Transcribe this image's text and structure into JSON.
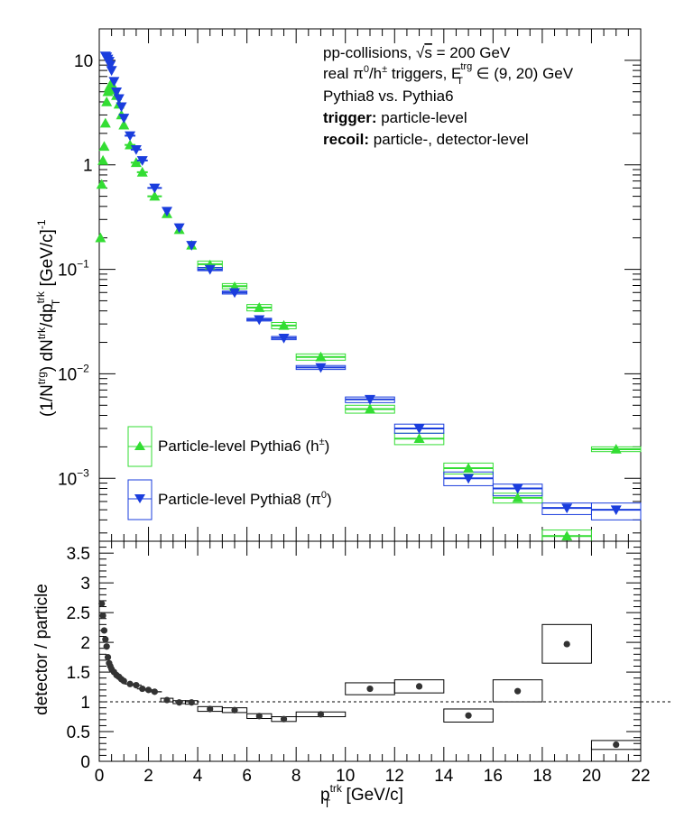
{
  "chart_data": [
    {
      "type": "scatter",
      "panel": "top",
      "ylabel": {
        "main": "(1/N",
        "sup_trg": "trg",
        "mid": ") dN",
        "sup_trk": "trk",
        "div": "/dp",
        "sub_T": "T",
        "sup_trk2": "trk",
        "unit": " [GeV/c]",
        "sup_unit": "-1"
      },
      "ylim": [
        0.00025,
        20
      ],
      "yscale": "log",
      "y_tick_labels": [
        {
          "value": 10,
          "base": "10",
          "exp": ""
        },
        {
          "value": 1,
          "base": "1",
          "exp": ""
        },
        {
          "value": 0.1,
          "base": "10",
          "exp": "−1"
        },
        {
          "value": 0.01,
          "base": "10",
          "exp": "−2"
        },
        {
          "value": 0.001,
          "base": "10",
          "exp": "−3"
        }
      ],
      "annotations": {
        "line1_a": "pp-collisions, ",
        "line1_sqrt": "√",
        "line1_s": "s",
        "line1_b": " = 200 GeV",
        "line2_a": "real π",
        "line2_sup0": "0",
        "line2_b": "/h",
        "line2_sup_pm": "±",
        "line2_c": " triggers, E",
        "line2_sup_trg": "trg",
        "line2_sub_T": "T",
        "line2_d": " ∈ (9, 20) GeV",
        "line3": "Pythia8 vs. Pythia6",
        "line4_bold": "trigger:",
        "line4_rest": " particle-level",
        "line5_bold": "recoil:",
        "line5_rest": " particle-, detector-level"
      },
      "series": [
        {
          "name": "Particle-level Pythia6 (h±)",
          "legend_text": "Particle-level Pythia6 (h",
          "legend_sup": "±",
          "legend_close": ")",
          "marker": "triangle-up",
          "color": "#33dd33",
          "points": [
            {
              "x": 0.05,
              "y": 0.2
            },
            {
              "x": 0.1,
              "y": 0.65
            },
            {
              "x": 0.15,
              "y": 1.1
            },
            {
              "x": 0.2,
              "y": 1.5
            },
            {
              "x": 0.25,
              "y": 2.5
            },
            {
              "x": 0.3,
              "y": 4.0
            },
            {
              "x": 0.35,
              "y": 5.0
            },
            {
              "x": 0.4,
              "y": 5.5
            },
            {
              "x": 0.45,
              "y": 5.8
            },
            {
              "x": 0.5,
              "y": 6.0
            },
            {
              "x": 0.6,
              "y": 5.2
            },
            {
              "x": 0.7,
              "y": 4.6
            },
            {
              "x": 0.8,
              "y": 3.8
            },
            {
              "x": 0.9,
              "y": 3.0
            },
            {
              "x": 1.0,
              "y": 2.4
            },
            {
              "x": 1.25,
              "y": 1.55
            },
            {
              "x": 1.5,
              "y": 1.05
            },
            {
              "x": 1.75,
              "y": 0.85
            },
            {
              "x": 2.25,
              "y": 0.5
            },
            {
              "x": 2.75,
              "y": 0.34
            },
            {
              "x": 3.25,
              "y": 0.24
            },
            {
              "x": 3.75,
              "y": 0.17
            },
            {
              "x": 4.5,
              "y": 0.11
            },
            {
              "x": 5.5,
              "y": 0.068
            },
            {
              "x": 6.5,
              "y": 0.043
            },
            {
              "x": 7.5,
              "y": 0.029
            },
            {
              "x": 9,
              "y": 0.0145
            },
            {
              "x": 11,
              "y": 0.0046
            },
            {
              "x": 13,
              "y": 0.0024
            },
            {
              "x": 15,
              "y": 0.00125
            },
            {
              "x": 17,
              "y": 0.00065
            },
            {
              "x": 19,
              "y": 0.00028
            },
            {
              "x": 21,
              "y": 0.0019
            }
          ]
        },
        {
          "name": "Particle-level Pythia8 (π0)",
          "legend_text": "Particle-level Pythia8 (π",
          "legend_sup": "0",
          "legend_close": ")",
          "marker": "triangle-down",
          "color": "#1a3ddd",
          "points": [
            {
              "x": 0.25,
              "y": 11.0
            },
            {
              "x": 0.3,
              "y": 10.8
            },
            {
              "x": 0.35,
              "y": 10.3
            },
            {
              "x": 0.4,
              "y": 9.8
            },
            {
              "x": 0.45,
              "y": 9.0
            },
            {
              "x": 0.5,
              "y": 8.0
            },
            {
              "x": 0.6,
              "y": 6.3
            },
            {
              "x": 0.7,
              "y": 5.0
            },
            {
              "x": 0.8,
              "y": 4.3
            },
            {
              "x": 0.9,
              "y": 3.6
            },
            {
              "x": 1.0,
              "y": 2.8
            },
            {
              "x": 1.25,
              "y": 1.9
            },
            {
              "x": 1.5,
              "y": 1.4
            },
            {
              "x": 1.75,
              "y": 1.1
            },
            {
              "x": 2.25,
              "y": 0.6
            },
            {
              "x": 2.75,
              "y": 0.36
            },
            {
              "x": 3.25,
              "y": 0.25
            },
            {
              "x": 3.75,
              "y": 0.17
            },
            {
              "x": 4.5,
              "y": 0.1
            },
            {
              "x": 5.5,
              "y": 0.06
            },
            {
              "x": 6.5,
              "y": 0.033
            },
            {
              "x": 7.5,
              "y": 0.022
            },
            {
              "x": 9,
              "y": 0.0115
            },
            {
              "x": 11,
              "y": 0.0057
            },
            {
              "x": 13,
              "y": 0.003
            },
            {
              "x": 15,
              "y": 0.001
            },
            {
              "x": 17,
              "y": 0.0008
            },
            {
              "x": 19,
              "y": 0.00052
            },
            {
              "x": 21,
              "y": 0.0005
            }
          ]
        }
      ],
      "boxes_green": [
        {
          "x0": 4,
          "x1": 5,
          "y": 0.112,
          "lo": 0.104,
          "hi": 0.12
        },
        {
          "x0": 5,
          "x1": 6,
          "y": 0.069,
          "lo": 0.065,
          "hi": 0.073
        },
        {
          "x0": 6,
          "x1": 7,
          "y": 0.043,
          "lo": 0.04,
          "hi": 0.046
        },
        {
          "x0": 7,
          "x1": 8,
          "y": 0.029,
          "lo": 0.027,
          "hi": 0.031
        },
        {
          "x0": 8,
          "x1": 10,
          "y": 0.0145,
          "lo": 0.0135,
          "hi": 0.0155
        },
        {
          "x0": 10,
          "x1": 12,
          "y": 0.0046,
          "lo": 0.0042,
          "hi": 0.005
        },
        {
          "x0": 12,
          "x1": 14,
          "y": 0.0024,
          "lo": 0.0021,
          "hi": 0.0027
        },
        {
          "x0": 14,
          "x1": 16,
          "y": 0.00125,
          "lo": 0.0011,
          "hi": 0.0014
        },
        {
          "x0": 16,
          "x1": 18,
          "y": 0.00065,
          "lo": 0.00058,
          "hi": 0.00072
        },
        {
          "x0": 18,
          "x1": 20,
          "y": 0.00028,
          "lo": 0.00025,
          "hi": 0.00032
        },
        {
          "x0": 20,
          "x1": 22,
          "y": 0.0019,
          "lo": 0.0018,
          "hi": 0.002
        }
      ],
      "boxes_blue": [
        {
          "x0": 4,
          "x1": 5,
          "y": 0.1,
          "lo": 0.097,
          "hi": 0.104
        },
        {
          "x0": 5,
          "x1": 6,
          "y": 0.06,
          "lo": 0.058,
          "hi": 0.062
        },
        {
          "x0": 6,
          "x1": 7,
          "y": 0.033,
          "lo": 0.032,
          "hi": 0.034
        },
        {
          "x0": 7,
          "x1": 8,
          "y": 0.022,
          "lo": 0.0212,
          "hi": 0.0228
        },
        {
          "x0": 8,
          "x1": 10,
          "y": 0.0115,
          "lo": 0.011,
          "hi": 0.012
        },
        {
          "x0": 10,
          "x1": 12,
          "y": 0.0057,
          "lo": 0.0053,
          "hi": 0.006
        },
        {
          "x0": 12,
          "x1": 14,
          "y": 0.003,
          "lo": 0.0027,
          "hi": 0.0033
        },
        {
          "x0": 14,
          "x1": 16,
          "y": 0.001,
          "lo": 0.00085,
          "hi": 0.00115
        },
        {
          "x0": 16,
          "x1": 18,
          "y": 0.0008,
          "lo": 0.00068,
          "hi": 0.00088
        },
        {
          "x0": 18,
          "x1": 20,
          "y": 0.00052,
          "lo": 0.00045,
          "hi": 0.00058
        },
        {
          "x0": 20,
          "x1": 22,
          "y": 0.0005,
          "lo": 0.0004,
          "hi": 0.00058
        }
      ]
    },
    {
      "type": "scatter",
      "panel": "bottom",
      "ylabel": "detector / particle",
      "xlabel": {
        "main": "p",
        "sub_T": "T",
        "sup_trk": "trk",
        "unit": " [GeV/c]"
      },
      "xlim": [
        0,
        22
      ],
      "ylim": [
        0,
        3.7
      ],
      "x_tick_labels": [
        "0",
        "2",
        "4",
        "6",
        "8",
        "10",
        "12",
        "14",
        "16",
        "18",
        "20",
        "22"
      ],
      "y_tick_labels": [
        "0",
        "0.5",
        "1",
        "1.5",
        "2",
        "2.5",
        "3",
        "3.5"
      ],
      "reference_line_y": 1,
      "points": [
        {
          "x": 0.1,
          "y": 2.65
        },
        {
          "x": 0.15,
          "y": 2.45
        },
        {
          "x": 0.2,
          "y": 2.2
        },
        {
          "x": 0.25,
          "y": 2.05
        },
        {
          "x": 0.3,
          "y": 1.93
        },
        {
          "x": 0.35,
          "y": 1.75
        },
        {
          "x": 0.4,
          "y": 1.65
        },
        {
          "x": 0.45,
          "y": 1.6
        },
        {
          "x": 0.5,
          "y": 1.55
        },
        {
          "x": 0.6,
          "y": 1.5
        },
        {
          "x": 0.7,
          "y": 1.45
        },
        {
          "x": 0.8,
          "y": 1.42
        },
        {
          "x": 0.9,
          "y": 1.38
        },
        {
          "x": 1.0,
          "y": 1.35
        },
        {
          "x": 1.25,
          "y": 1.3
        },
        {
          "x": 1.5,
          "y": 1.28
        },
        {
          "x": 1.75,
          "y": 1.22
        },
        {
          "x": 2.0,
          "y": 1.2
        },
        {
          "x": 2.25,
          "y": 1.17
        },
        {
          "x": 2.75,
          "y": 1.03
        },
        {
          "x": 3.25,
          "y": 0.99
        },
        {
          "x": 3.75,
          "y": 0.99
        },
        {
          "x": 4.5,
          "y": 0.88
        },
        {
          "x": 5.5,
          "y": 0.86
        },
        {
          "x": 6.5,
          "y": 0.76
        },
        {
          "x": 7.5,
          "y": 0.71
        },
        {
          "x": 9,
          "y": 0.79
        },
        {
          "x": 11,
          "y": 1.22
        },
        {
          "x": 13,
          "y": 1.26
        },
        {
          "x": 15,
          "y": 0.77
        },
        {
          "x": 17,
          "y": 1.18
        },
        {
          "x": 19,
          "y": 1.97
        },
        {
          "x": 21,
          "y": 0.28
        }
      ],
      "boxes": [
        {
          "x0": 2.5,
          "x1": 3.0,
          "lo": 1.0,
          "hi": 1.06
        },
        {
          "x0": 3.0,
          "x1": 3.5,
          "lo": 0.97,
          "hi": 1.02
        },
        {
          "x0": 3.5,
          "x1": 4.0,
          "lo": 0.96,
          "hi": 1.02
        },
        {
          "x0": 4.0,
          "x1": 5.0,
          "lo": 0.84,
          "hi": 0.92
        },
        {
          "x0": 5.0,
          "x1": 6.0,
          "lo": 0.82,
          "hi": 0.9
        },
        {
          "x0": 6.0,
          "x1": 7.0,
          "lo": 0.72,
          "hi": 0.8
        },
        {
          "x0": 7.0,
          "x1": 8.0,
          "lo": 0.67,
          "hi": 0.75
        },
        {
          "x0": 8.0,
          "x1": 10.0,
          "lo": 0.75,
          "hi": 0.83
        },
        {
          "x0": 10.0,
          "x1": 12.0,
          "lo": 1.12,
          "hi": 1.32
        },
        {
          "x0": 12.0,
          "x1": 14.0,
          "lo": 1.15,
          "hi": 1.37
        },
        {
          "x0": 14.0,
          "x1": 16.0,
          "lo": 0.66,
          "hi": 0.88
        },
        {
          "x0": 16.0,
          "x1": 18.0,
          "lo": 1.0,
          "hi": 1.37
        },
        {
          "x0": 18.0,
          "x1": 20.0,
          "lo": 1.65,
          "hi": 2.3
        },
        {
          "x0": 20.0,
          "x1": 22.0,
          "lo": 0.2,
          "hi": 0.35
        }
      ]
    }
  ]
}
